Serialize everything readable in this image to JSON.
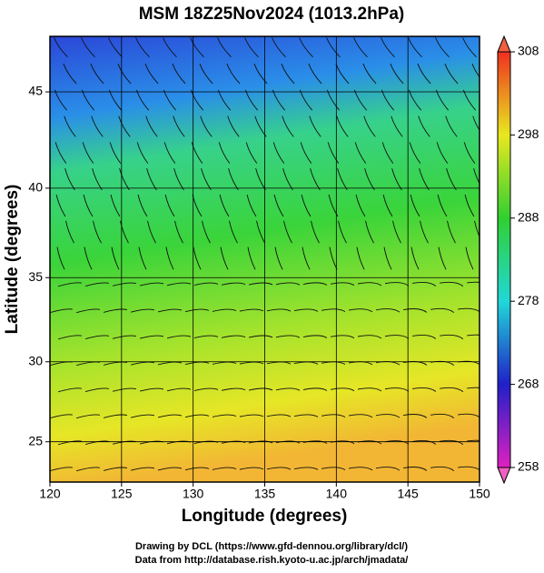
{
  "title": "MSM 18Z25Nov2024 (1013.2hPa)",
  "map": {
    "projection": "mercator",
    "xlabel": "Longitude (degrees)",
    "ylabel": "Latitude  (degrees)",
    "xlim": [
      120,
      150
    ],
    "ylim": [
      22.4,
      47.7
    ],
    "xticks": [
      120,
      125,
      130,
      135,
      140,
      145,
      150
    ],
    "yticks": [
      25,
      30,
      35,
      40,
      45
    ],
    "grid": true
  },
  "colorbar": {
    "lim": [
      258,
      308
    ],
    "ticks": [
      258,
      268,
      278,
      288,
      298,
      308
    ]
  },
  "credits": [
    "Drawing by DCL (https://www.gfd-dennou.org/library/dcl/)",
    "Data from http://database.rish.kyoto-u.ac.jp/arch/jmadata/"
  ]
}
